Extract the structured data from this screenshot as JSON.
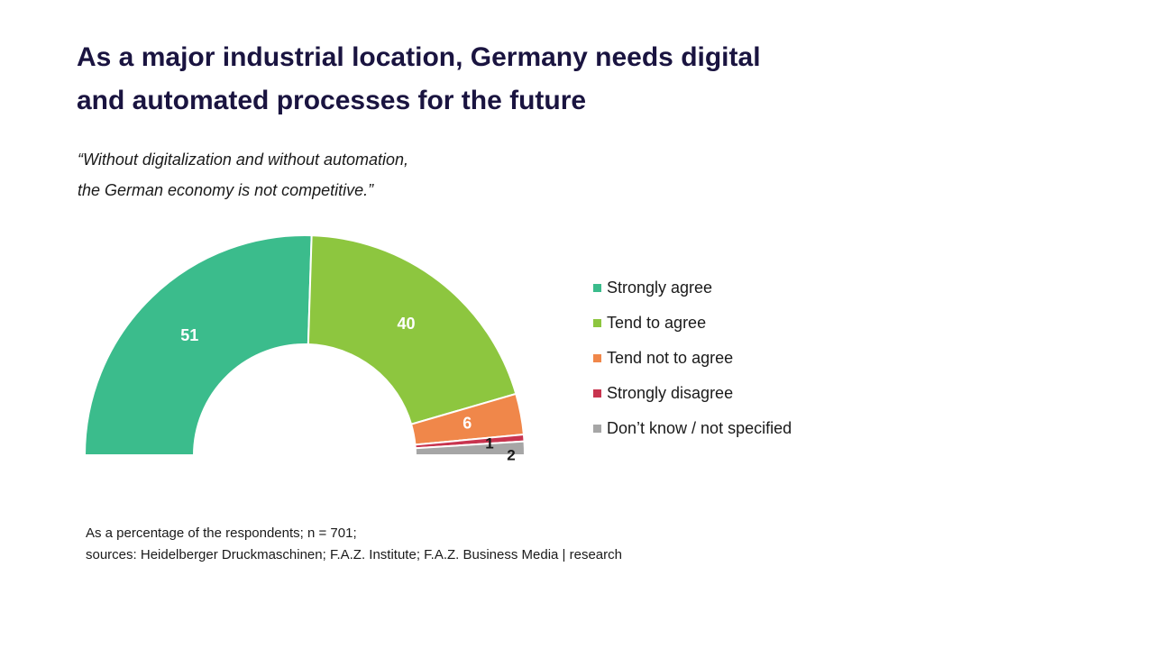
{
  "title_lines": [
    "As a major industrial location, Germany needs digital",
    "and automated processes for the future"
  ],
  "subtitle_lines": [
    "“Without digitalization and without automation,",
    "the German economy is not competitive.”"
  ],
  "footnote_lines": [
    "As a percentage of the respondents; n = 701;",
    "sources: Heidelberger Druckmaschinen; F.A.Z. Institute; F.A.Z. Business Media | research"
  ],
  "chart_data": {
    "type": "pie",
    "variant": "semicircle-donut",
    "unit": "percent",
    "categories": [
      "Strongly agree",
      "Tend to agree",
      "Tend not to agree",
      "Strongly disagree",
      "Don’t know / not specified"
    ],
    "values": [
      51,
      40,
      6,
      1,
      2
    ],
    "data_labels": [
      "51",
      "40",
      "6",
      "1",
      "2"
    ],
    "colors": [
      "#3bbc8c",
      "#8dc63f",
      "#f0874a",
      "#c8344f",
      "#a6a6a6"
    ],
    "label_colors": [
      "#ffffff",
      "#ffffff",
      "#ffffff",
      "#1a1a1a",
      "#1a1a1a"
    ],
    "legend_position": "right"
  }
}
